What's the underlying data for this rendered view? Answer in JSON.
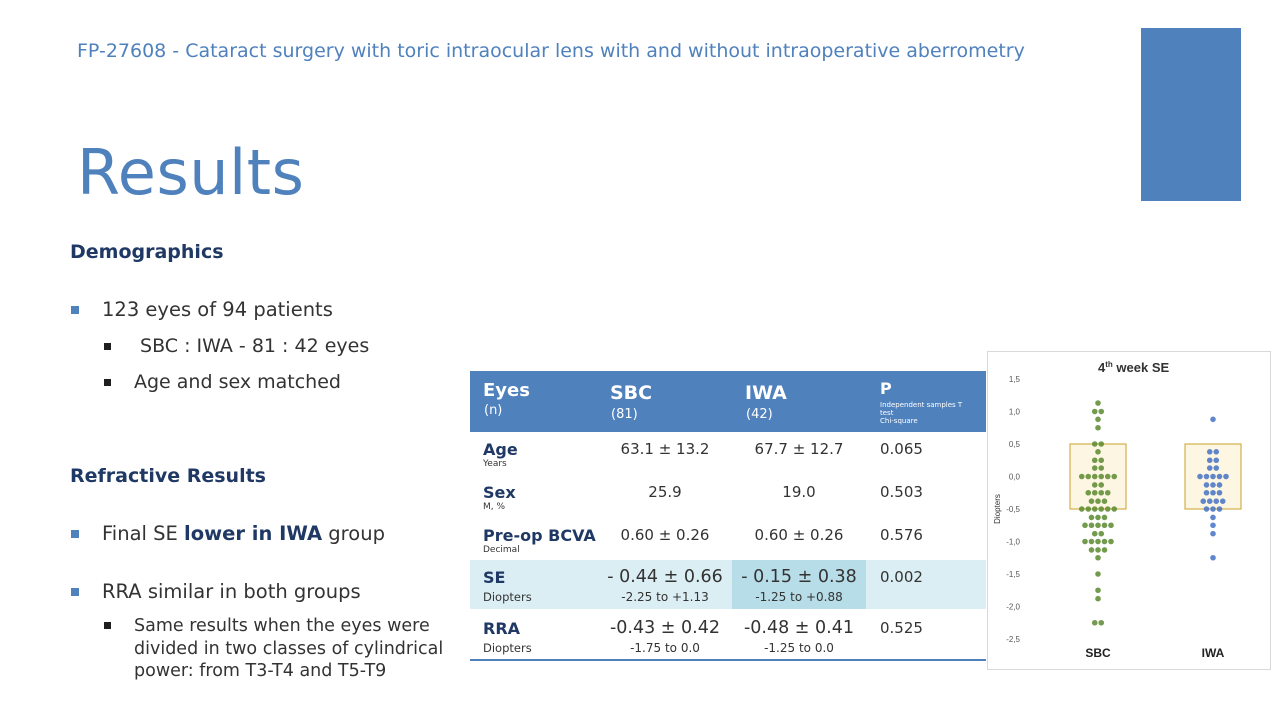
{
  "header": "FP-27608 - Cataract surgery with toric intraocular lens with and without intraoperative aberrometry",
  "title": "Results",
  "demographics": {
    "heading": "Demographics",
    "b1": "123 eyes of 94 patients",
    "b2": " SBC : IWA - 81 : 42 eyes",
    "b3": "Age and sex matched"
  },
  "refractive": {
    "heading": "Refractive Results",
    "b1_pre": "Final SE ",
    "b1_bold": "lower in IWA",
    "b1_post": " group",
    "b2": "RRA similar in both groups",
    "b3": "Same results when the eyes were divided in two classes of cylindrical power: from T3-T4 and T5-T9"
  },
  "table": {
    "h_eyes": "Eyes",
    "h_n": "(n)",
    "h_sbc": "SBC",
    "h_sbc_n": "(81)",
    "h_iwa": "IWA",
    "h_iwa_n": "(42)",
    "h_p": "P",
    "h_p_note1": "Independent samples T test",
    "h_p_note2": "Chi-square",
    "rows": [
      {
        "label": "Age",
        "sub": "Years",
        "sbc": "63.1 ± 13.2",
        "iwa": "67.7 ± 12.7",
        "p": "0.065"
      },
      {
        "label": "Sex",
        "sub": "M, %",
        "sbc": "25.9",
        "iwa": "19.0",
        "p": "0.503"
      },
      {
        "label": "Pre-op BCVA",
        "sub": "Decimal",
        "sbc": "0.60 ± 0.26",
        "iwa": "0.60 ± 0.26",
        "p": "0.576"
      },
      {
        "label": "SE",
        "sub": "Diopters",
        "sbc": "- 0.44 ± 0.66",
        "sbc_range": "-2.25 to +1.13",
        "iwa": "- 0.15 ± 0.38",
        "iwa_range": "-1.25 to +0.88",
        "p": "0.002"
      },
      {
        "label": "RRA",
        "sub": "Diopters",
        "sbc": "-0.43 ± 0.42",
        "sbc_range": "-1.75 to 0.0",
        "iwa": "-0.48 ± 0.41",
        "iwa_range": "-1.25 to 0.0",
        "p": "0.525"
      }
    ]
  },
  "chart_data": {
    "type": "scatter",
    "title": "4th week SE",
    "title_sup": "th",
    "title_num": "4",
    "title_rest": " week SE",
    "ylabel": "Diopters",
    "xlabel": "",
    "categories": [
      "SBC",
      "IWA"
    ],
    "ylim": [
      -2.5,
      1.5
    ],
    "yticks": [
      1.5,
      1.0,
      0.5,
      0.0,
      -0.5,
      -1.0,
      -1.5,
      -2.0,
      -2.5
    ],
    "ytick_labels": [
      "1,5",
      "1,0",
      "0,5",
      "0,0",
      "-0,5",
      "-1,0",
      "-1,5",
      "-2,0",
      "-2,5"
    ],
    "grid": false,
    "series": [
      {
        "name": "SBC",
        "color": "#5a8a2e",
        "box": {
          "q1": -0.5,
          "q3": 0.5
        },
        "values": [
          1.13,
          1.0,
          1.0,
          0.88,
          0.75,
          0.5,
          0.5,
          0.38,
          0.25,
          0.25,
          0.13,
          0.13,
          0.0,
          0.0,
          0.0,
          0.0,
          0.0,
          0.0,
          -0.13,
          -0.13,
          -0.25,
          -0.25,
          -0.25,
          -0.25,
          -0.38,
          -0.38,
          -0.38,
          -0.5,
          -0.5,
          -0.5,
          -0.5,
          -0.5,
          -0.5,
          -0.63,
          -0.63,
          -0.63,
          -0.75,
          -0.75,
          -0.75,
          -0.75,
          -0.75,
          -0.88,
          -0.88,
          -1.0,
          -1.0,
          -1.0,
          -1.0,
          -1.0,
          -1.13,
          -1.13,
          -1.13,
          -1.25,
          -1.5,
          -1.75,
          -1.88,
          -2.25,
          -2.25
        ]
      },
      {
        "name": "IWA",
        "color": "#4472c4",
        "box": {
          "q1": -0.5,
          "q3": 0.5
        },
        "values": [
          0.88,
          0.38,
          0.38,
          0.25,
          0.25,
          0.13,
          0.13,
          0.0,
          0.0,
          0.0,
          0.0,
          0.0,
          -0.13,
          -0.13,
          -0.13,
          -0.25,
          -0.25,
          -0.25,
          -0.38,
          -0.38,
          -0.38,
          -0.38,
          -0.5,
          -0.5,
          -0.5,
          -0.63,
          -0.75,
          -0.88,
          -1.25
        ]
      }
    ],
    "box_color": "#c9a227",
    "box_fill": "#fdf6e3"
  }
}
